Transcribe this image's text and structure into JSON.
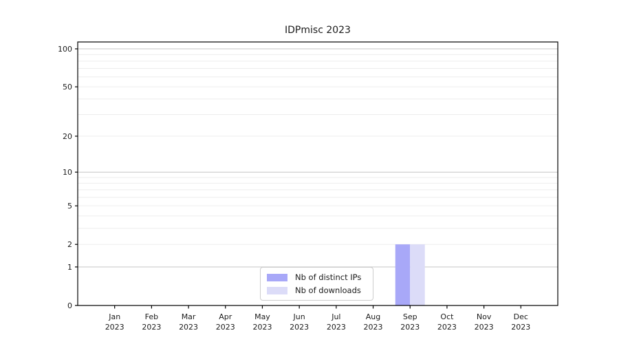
{
  "title": "IDPmisc 2023",
  "colors": {
    "bar_distinct_ips": "#a8a8f8",
    "bar_downloads": "#dcdcf8",
    "grid_major": "#c4c4c4",
    "grid_minor": "#ededed",
    "axis": "#000000",
    "text": "#1a1a1a",
    "legend_border": "#cccccc",
    "background": "#ffffff"
  },
  "legend": {
    "items": [
      {
        "label": "Nb of distinct IPs",
        "color": "#a8a8f8"
      },
      {
        "label": "Nb of downloads",
        "color": "#dcdcf8"
      }
    ]
  },
  "chart_data": {
    "type": "bar",
    "title": "IDPmisc 2023",
    "months": [
      "Jan",
      "Feb",
      "Mar",
      "Apr",
      "May",
      "Jun",
      "Jul",
      "Aug",
      "Sep",
      "Oct",
      "Nov",
      "Dec"
    ],
    "year": "2023",
    "categories": [
      "Jan 2023",
      "Feb 2023",
      "Mar 2023",
      "Apr 2023",
      "May 2023",
      "Jun 2023",
      "Jul 2023",
      "Aug 2023",
      "Sep 2023",
      "Oct 2023",
      "Nov 2023",
      "Dec 2023"
    ],
    "series": [
      {
        "name": "Nb of distinct IPs",
        "color": "#a8a8f8",
        "values": [
          0,
          0,
          0,
          0,
          0,
          0,
          0,
          0,
          2,
          0,
          0,
          0
        ]
      },
      {
        "name": "Nb of downloads",
        "color": "#dcdcf8",
        "values": [
          0,
          0,
          0,
          0,
          0,
          0,
          0,
          0,
          2,
          0,
          0,
          0
        ]
      }
    ],
    "xlabel": "",
    "ylabel": "",
    "yscale": "log10(value+1)",
    "ylim": [
      0,
      113
    ],
    "y_tick_values": [
      0,
      1,
      2,
      5,
      10,
      20,
      50,
      100
    ],
    "y_tick_labels": [
      "0",
      "1",
      "2",
      "5",
      "10",
      "20",
      "50",
      "100"
    ],
    "grid": "horizontal, minor+major",
    "legend_position": "lower center"
  }
}
